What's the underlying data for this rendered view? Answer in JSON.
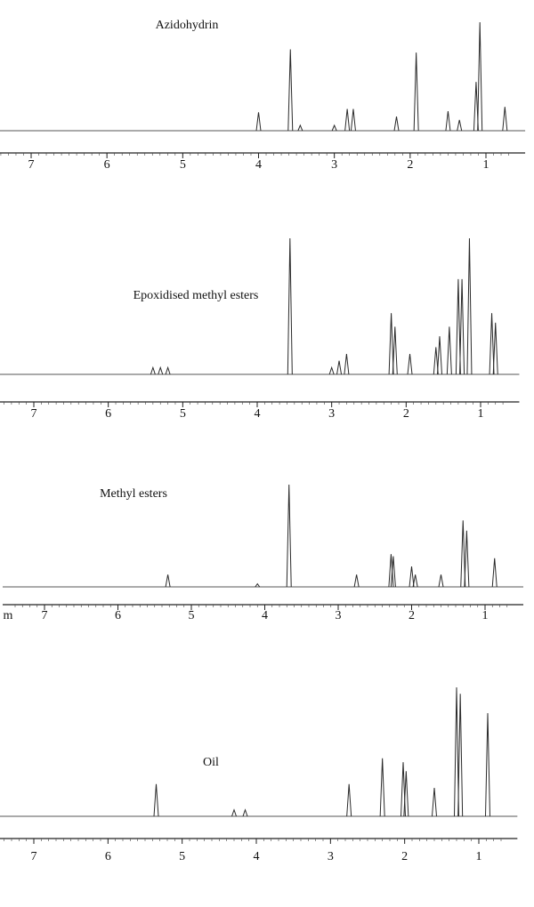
{
  "chart_data": [
    {
      "type": "stem",
      "title": "Azidohydrin",
      "color": "#2a2a2a",
      "x": [
        4.0,
        3.58,
        3.45,
        3.0,
        2.83,
        2.75,
        2.18,
        1.92,
        1.5,
        1.35,
        1.13,
        1.08,
        0.75
      ],
      "values": [
        17,
        75,
        5,
        5,
        20,
        20,
        13,
        72,
        18,
        10,
        45,
        100,
        22
      ],
      "xlim": [
        7.4,
        0.6
      ],
      "xticks": [
        7,
        6,
        5,
        4,
        3,
        2,
        1
      ],
      "ylim": [
        0,
        100
      ]
    },
    {
      "type": "stem",
      "title": "Epoxidised methyl esters",
      "color": "#2a2a2a",
      "x": [
        5.4,
        5.3,
        5.2,
        3.56,
        3.0,
        2.9,
        2.8,
        2.2,
        2.15,
        1.95,
        1.6,
        1.55,
        1.42,
        1.3,
        1.25,
        1.15,
        0.85,
        0.8
      ],
      "values": [
        5,
        5,
        5,
        100,
        5,
        10,
        15,
        45,
        35,
        15,
        20,
        28,
        35,
        70,
        70,
        100,
        45,
        38
      ],
      "xlim": [
        7.4,
        0.6
      ],
      "xticks": [
        7,
        6,
        5,
        4,
        3,
        2,
        1
      ],
      "ylim": [
        0,
        100
      ]
    },
    {
      "type": "stem",
      "title": "Methyl esters",
      "annotation": "m",
      "color": "#2a2a2a",
      "x": [
        5.32,
        4.1,
        3.67,
        2.75,
        2.28,
        2.25,
        2.0,
        1.95,
        1.6,
        1.3,
        1.25,
        0.87
      ],
      "values": [
        12,
        3,
        100,
        12,
        32,
        30,
        20,
        12,
        12,
        65,
        55,
        28
      ],
      "xlim": [
        7.4,
        0.6
      ],
      "xticks": [
        7,
        6,
        5,
        4,
        3,
        2,
        1
      ],
      "ylim": [
        0,
        100
      ]
    },
    {
      "type": "stem",
      "title": "Oil",
      "color": "#2a2a2a",
      "x": [
        5.35,
        4.3,
        4.15,
        2.75,
        2.3,
        2.02,
        1.98,
        1.6,
        1.3,
        1.25,
        0.88
      ],
      "values": [
        25,
        5,
        5,
        25,
        45,
        42,
        35,
        22,
        100,
        95,
        80
      ],
      "xlim": [
        7.4,
        0.6
      ],
      "xticks": [
        7,
        6,
        5,
        4,
        3,
        2,
        1
      ],
      "ylim": [
        0,
        100
      ]
    }
  ]
}
